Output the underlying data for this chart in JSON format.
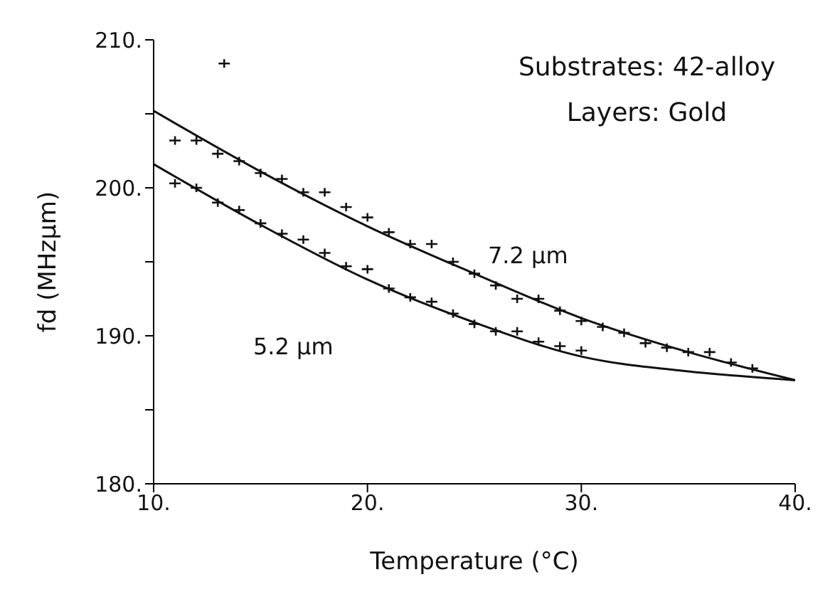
{
  "chart_data": {
    "type": "scatter",
    "xlabel": "Temperature (°C)",
    "ylabel": "fd (MHzμm)",
    "xlim": [
      10,
      40
    ],
    "xticks": [
      {
        "value": 10,
        "label": "10."
      },
      {
        "value": 20,
        "label": "20."
      },
      {
        "value": 30,
        "label": "30."
      },
      {
        "value": 40,
        "label": "40."
      }
    ],
    "ylim": [
      180,
      210
    ],
    "yticks": [
      {
        "value": 180,
        "label": "180."
      },
      {
        "value": 185,
        "label": null
      },
      {
        "value": 190,
        "label": "190."
      },
      {
        "value": 195,
        "label": null
      },
      {
        "value": 200,
        "label": "200."
      },
      {
        "value": 205,
        "label": null
      },
      {
        "value": 210,
        "label": "210."
      }
    ],
    "grid": false,
    "series": [
      {
        "type": "line",
        "marker": "none",
        "color": "#111111",
        "x": [
          10,
          15,
          20,
          25,
          30,
          35,
          40
        ],
        "values": [
          205.2,
          201.1,
          197.4,
          194.2,
          191.2,
          188.9,
          187.0
        ]
      },
      {
        "type": "line",
        "marker": "none",
        "color": "#111111",
        "x": [
          10,
          15,
          20,
          25,
          30,
          35,
          40
        ],
        "values": [
          201.6,
          197.5,
          193.8,
          190.9,
          188.6,
          187.6,
          187.0
        ]
      },
      {
        "marker": "cross",
        "color": "#111111",
        "x": [
          11,
          12,
          13,
          13.3,
          14,
          15,
          16,
          17,
          18,
          19,
          20,
          21,
          22,
          23,
          24,
          25,
          26,
          27,
          28,
          29,
          30,
          31,
          32,
          33,
          34,
          35,
          36,
          37,
          38
        ],
        "values": [
          203.2,
          203.2,
          202.3,
          208.4,
          201.8,
          201.0,
          200.6,
          199.7,
          199.7,
          198.7,
          198.0,
          197.0,
          196.2,
          196.2,
          195.0,
          194.2,
          193.4,
          192.5,
          192.5,
          191.7,
          191.0,
          190.6,
          190.2,
          189.5,
          189.2,
          188.9,
          188.9,
          188.2,
          187.8
        ]
      },
      {
        "marker": "cross",
        "color": "#111111",
        "x": [
          11,
          12,
          13,
          14,
          15,
          16,
          17,
          18,
          19,
          20,
          21,
          22,
          23,
          24,
          25,
          26,
          27,
          28,
          29,
          30
        ],
        "values": [
          200.3,
          200.0,
          199.0,
          198.5,
          197.6,
          196.9,
          196.5,
          195.6,
          194.7,
          194.5,
          193.2,
          192.6,
          192.3,
          191.5,
          190.8,
          190.3,
          190.3,
          189.6,
          189.3,
          189.0
        ]
      }
    ],
    "annotations": [
      "Substrates: 42-alloy",
      "Layers: Gold",
      "7.2 μm",
      "5.2 μm"
    ]
  }
}
